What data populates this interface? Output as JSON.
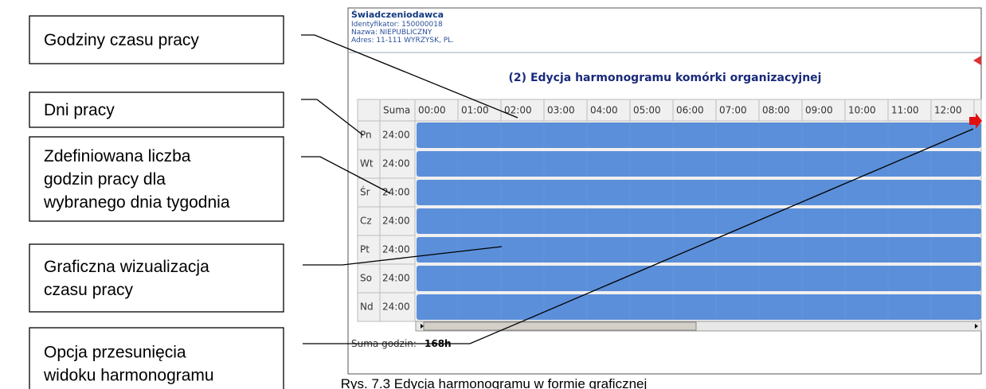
{
  "callouts": [
    {
      "lines": [
        "Godziny czasu pracy"
      ]
    },
    {
      "lines": [
        "Dni pracy"
      ]
    },
    {
      "lines": [
        "Zdefiniowana liczba",
        "godzin pracy dla",
        "wybranego dnia tygodnia"
      ]
    },
    {
      "lines": [
        "Graficzna wizualizacja",
        "czasu pracy"
      ]
    },
    {
      "lines": [
        "Opcja przesunięcia",
        "widoku harmonogramu"
      ]
    }
  ],
  "provider": {
    "title": "Świadczeniodawca",
    "lines": [
      "Identyfikator: 150000018",
      "Nazwa: NIEPUBLICZNY",
      "Adres: 11-111 WYRZYSK, PL."
    ]
  },
  "heading": "(2) Edycja harmonogramu komórki organizacyjnej",
  "table": {
    "sum_header": "Suma",
    "hours": [
      "00:00",
      "01:00",
      "02:00",
      "03:00",
      "04:00",
      "05:00",
      "06:00",
      "07:00",
      "08:00",
      "09:00",
      "10:00",
      "11:00",
      "12:00"
    ],
    "rows": [
      [
        "Pn",
        "24:00"
      ],
      [
        "Wt",
        "24:00"
      ],
      [
        "Śr",
        "24:00"
      ],
      [
        "Cz",
        "24:00"
      ],
      [
        "Pt",
        "24:00"
      ],
      [
        "So",
        "24:00"
      ],
      [
        "Nd",
        "24:00"
      ]
    ]
  },
  "footer": {
    "label": "Suma godzin:",
    "value": "168h"
  },
  "caption": "Rys. 7.3 Edycja harmonogramu w formie graficznej"
}
